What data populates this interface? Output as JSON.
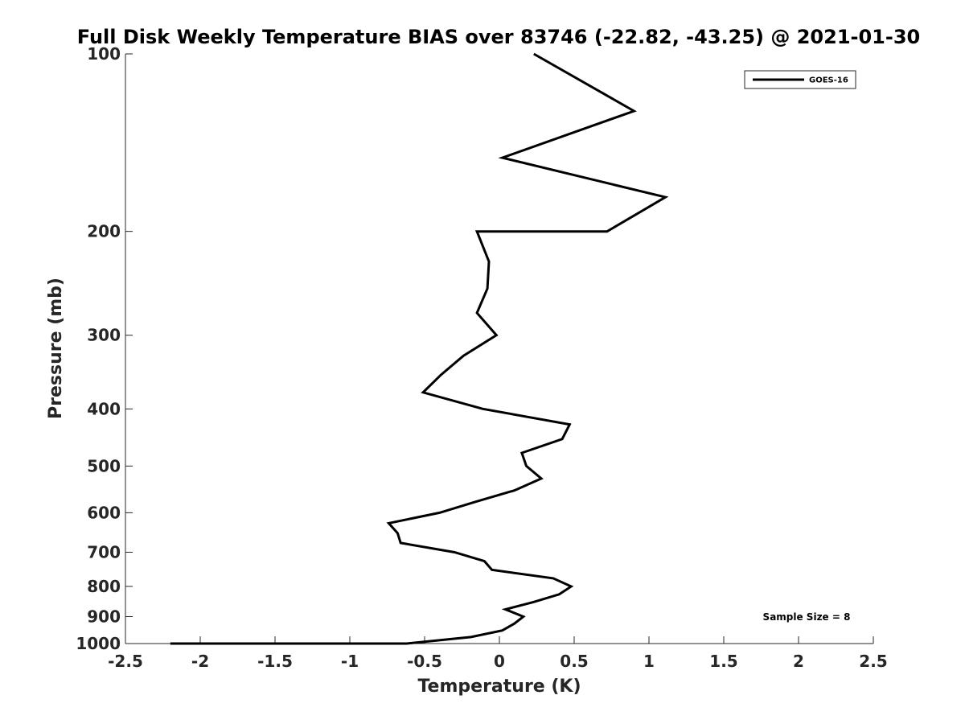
{
  "chart_data": {
    "type": "line",
    "title": "Full Disk Weekly Temperature BIAS over 83746 (-22.82, -43.25) @ 2021-01-30",
    "xlabel": "Temperature (K)",
    "ylabel": "Pressure (mb)",
    "xlim": [
      -2.5,
      2.5
    ],
    "ylim": [
      100,
      1000
    ],
    "yscale": "log",
    "yreversed": true,
    "grid": false,
    "legend_position": "top-right",
    "x_ticks": [
      -2.5,
      -2,
      -1.5,
      -1,
      -0.5,
      0,
      0.5,
      1,
      1.5,
      2,
      2.5
    ],
    "x_tick_labels": [
      "-2.5",
      "-2",
      "-1.5",
      "-1",
      "-0.5",
      "0",
      "0.5",
      "1",
      "1.5",
      "2",
      "2.5"
    ],
    "y_ticks": [
      100,
      200,
      300,
      400,
      500,
      600,
      700,
      800,
      900,
      1000
    ],
    "y_tick_labels": [
      "100",
      "200",
      "300",
      "400",
      "500",
      "600",
      "700",
      "800",
      "900",
      "1000"
    ],
    "series": [
      {
        "name": "GOES-16",
        "color": "#000000",
        "points": [
          [
            0.23,
            100
          ],
          [
            0.9,
            125
          ],
          [
            0.02,
            150
          ],
          [
            1.11,
            175
          ],
          [
            0.72,
            200
          ],
          [
            -0.15,
            200
          ],
          [
            -0.07,
            225
          ],
          [
            -0.08,
            250
          ],
          [
            -0.15,
            275
          ],
          [
            -0.02,
            300
          ],
          [
            -0.24,
            325
          ],
          [
            -0.39,
            350
          ],
          [
            -0.51,
            375
          ],
          [
            -0.11,
            400
          ],
          [
            0.47,
            425
          ],
          [
            0.42,
            450
          ],
          [
            0.15,
            475
          ],
          [
            0.18,
            500
          ],
          [
            0.28,
            525
          ],
          [
            0.1,
            550
          ],
          [
            -0.16,
            575
          ],
          [
            -0.4,
            600
          ],
          [
            -0.74,
            625
          ],
          [
            -0.68,
            650
          ],
          [
            -0.66,
            675
          ],
          [
            -0.3,
            700
          ],
          [
            -0.1,
            725
          ],
          [
            -0.05,
            750
          ],
          [
            0.36,
            775
          ],
          [
            0.48,
            800
          ],
          [
            0.4,
            825
          ],
          [
            0.23,
            850
          ],
          [
            0.04,
            875
          ],
          [
            0.16,
            900
          ],
          [
            0.1,
            925
          ],
          [
            0.02,
            950
          ],
          [
            -0.19,
            975
          ],
          [
            -0.62,
            1000
          ],
          [
            -0.69,
            1000
          ],
          [
            -1.18,
            1000
          ],
          [
            -1.35,
            1000
          ],
          [
            -1.52,
            1000
          ],
          [
            -2.0,
            1000
          ],
          [
            -2.2,
            1000
          ]
        ]
      }
    ],
    "annotation": "Sample Size = 8"
  }
}
